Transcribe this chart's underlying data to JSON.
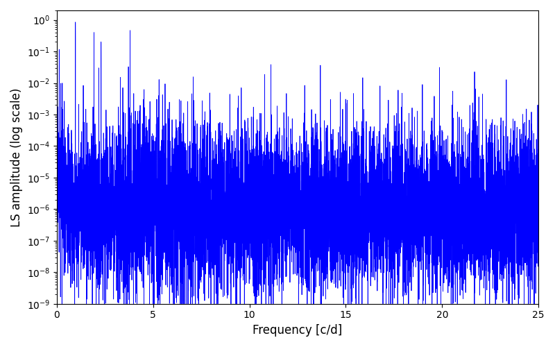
{
  "title": "",
  "xlabel": "Frequency [c/d]",
  "ylabel": "LS amplitude (log scale)",
  "line_color": "#0000ff",
  "line_width": 0.6,
  "xlim": [
    0,
    25
  ],
  "ylim": [
    1e-09,
    2.0
  ],
  "freq_min": 0.0,
  "freq_max": 25.0,
  "n_points": 8000,
  "seed": 17,
  "background_color": "#ffffff",
  "figsize": [
    8.0,
    5.0
  ],
  "dpi": 100
}
